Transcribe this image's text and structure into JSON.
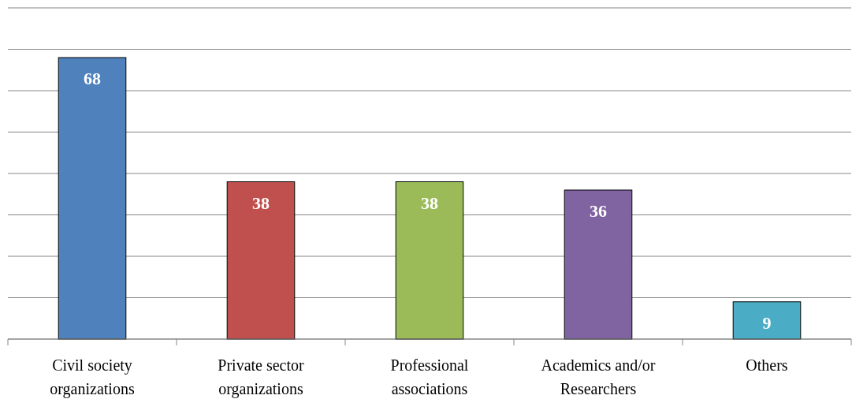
{
  "chart_data": {
    "type": "bar",
    "categories": [
      "Civil society organizations",
      "Private sector organizations",
      "Professional associations",
      "Academics and/or Researchers",
      "Others"
    ],
    "values": [
      68,
      38,
      38,
      36,
      9
    ],
    "colors": [
      "#4f81bd",
      "#c0504d",
      "#9bbb59",
      "#8064a2",
      "#4bacc6"
    ],
    "ylim": [
      0,
      80
    ],
    "yticks": [
      {
        "value": 0,
        "label": null
      },
      {
        "value": 10,
        "label": null
      },
      {
        "value": 20,
        "label": null
      },
      {
        "value": 30,
        "label": null
      },
      {
        "value": 40,
        "label": null
      },
      {
        "value": 50,
        "label": null
      },
      {
        "value": 60,
        "label": null
      },
      {
        "value": 70,
        "label": null
      },
      {
        "value": 80,
        "label": null
      }
    ],
    "tick_labels": "x",
    "grid": "y",
    "data_labels": true
  }
}
